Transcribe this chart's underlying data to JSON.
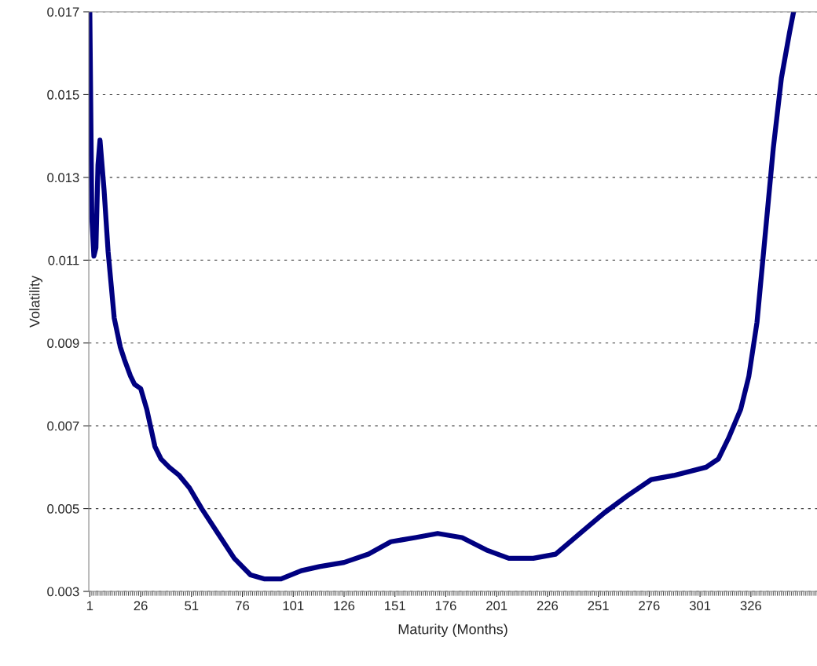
{
  "chart_data": {
    "type": "line",
    "xlabel": "Maturity (Months)",
    "ylabel": "Volatility",
    "x": [
      1,
      2,
      3,
      4,
      5,
      6,
      8,
      10,
      13,
      16,
      18,
      21,
      23,
      26,
      29,
      33,
      36,
      40,
      45,
      50,
      56,
      64,
      72,
      80,
      87,
      95,
      105,
      114,
      126,
      138,
      149,
      161,
      172,
      184,
      196,
      207,
      219,
      230,
      242,
      254,
      265,
      277,
      288,
      304,
      310,
      315,
      321,
      325,
      329,
      333,
      337,
      341,
      345,
      347
    ],
    "series": [
      {
        "color": "#000080",
        "values": [
          0.017,
          0.012,
          0.0111,
          0.0113,
          0.0133,
          0.0139,
          0.0127,
          0.0112,
          0.0096,
          0.0089,
          0.0086,
          0.0082,
          0.008,
          0.0079,
          0.0074,
          0.0065,
          0.0062,
          0.006,
          0.0058,
          0.0055,
          0.005,
          0.0044,
          0.0038,
          0.0034,
          0.0033,
          0.0033,
          0.0035,
          0.0036,
          0.0037,
          0.0039,
          0.0042,
          0.0043,
          0.0044,
          0.0043,
          0.004,
          0.0038,
          0.0038,
          0.0039,
          0.0044,
          0.0049,
          0.0053,
          0.0057,
          0.0058,
          0.006,
          0.0062,
          0.0067,
          0.0074,
          0.0082,
          0.0095,
          0.0116,
          0.0137,
          0.0154,
          0.0165,
          0.017
        ]
      }
    ],
    "xlim": [
      0.5,
      358.5
    ],
    "xticks": [
      1,
      26,
      51,
      76,
      101,
      126,
      151,
      176,
      201,
      226,
      251,
      276,
      301,
      326
    ],
    "ylim": [
      0.003,
      0.017
    ],
    "yticks": [
      0.003,
      0.005,
      0.007,
      0.009,
      0.011,
      0.013,
      0.015,
      0.017
    ],
    "grid": "y",
    "marker": "none",
    "line_style": "solid",
    "legend": false
  }
}
